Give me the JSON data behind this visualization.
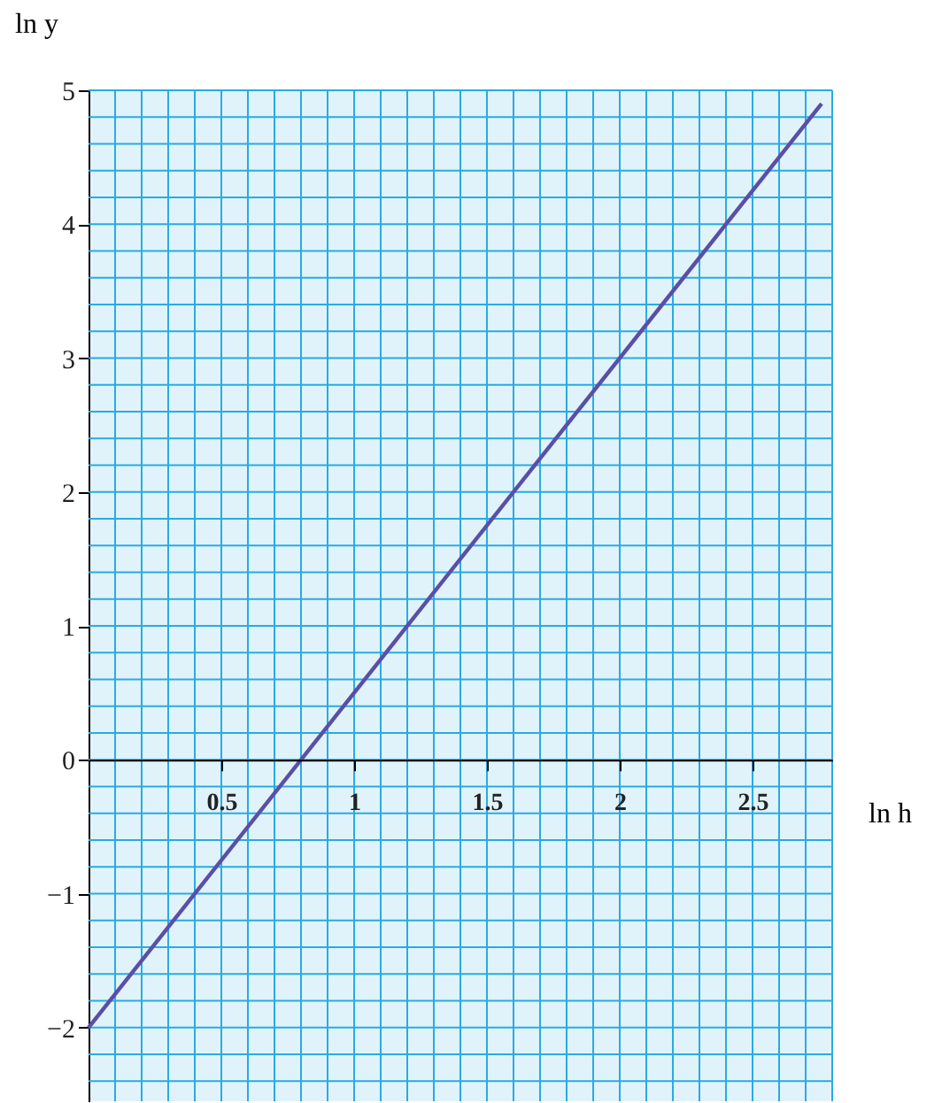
{
  "chart_data": {
    "type": "line",
    "xlabel": "ln h",
    "ylabel": "ln y",
    "series": [
      {
        "color": "#5a4fa6",
        "x": [
          0,
          2.76
        ],
        "values": [
          -2,
          4.9
        ]
      }
    ],
    "xlim": [
      0,
      2.8
    ],
    "xticks": [
      0.5,
      1,
      1.5,
      2,
      2.5
    ],
    "ylim": [
      -2.55,
      5
    ],
    "yticks": [
      -2,
      -1,
      0,
      1,
      2,
      3,
      4,
      5
    ],
    "grid": true,
    "marker": "none",
    "line_style": "solid"
  }
}
